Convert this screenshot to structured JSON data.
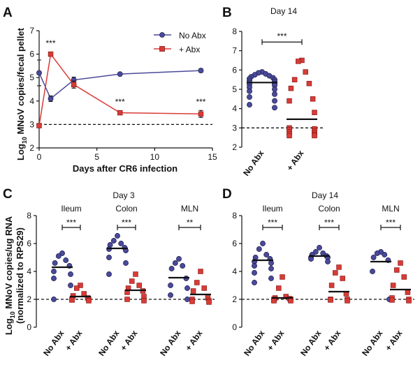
{
  "colors": {
    "no_abx": "#4a4a9a",
    "abx": "#d93b36",
    "axis": "#111111"
  },
  "chart_data": [
    {
      "panel": "A",
      "type": "line",
      "ylabel_main": "Log",
      "ylabel_sub": "10",
      "ylabel_rest": " MNoV copies/fecal pellet",
      "xlabel": "Days after CR6 infection",
      "xlim": [
        0,
        15
      ],
      "ylim": [
        2,
        7
      ],
      "xticks": [
        "0",
        "5",
        "10",
        "15"
      ],
      "yticks": [
        "2",
        "3",
        "4",
        "5",
        "6",
        "7"
      ],
      "detection_limit": 3,
      "legend_position": "top-right",
      "series": [
        {
          "name": "No Abx",
          "x": [
            0,
            1,
            3,
            7,
            14
          ],
          "y": [
            5.2,
            4.1,
            4.9,
            5.15,
            5.3
          ],
          "err": [
            0.55,
            0.12,
            0.12,
            0.05,
            0.08
          ]
        },
        {
          "name": "+ Abx",
          "x": [
            0,
            1,
            3,
            7,
            14
          ],
          "y": [
            2.95,
            6.0,
            4.7,
            3.5,
            3.45
          ],
          "err": [
            0.0,
            0.05,
            0.15,
            0.08,
            0.15
          ]
        }
      ],
      "annotations": [
        {
          "x": 1,
          "y": 6.35,
          "text": "***"
        },
        {
          "x": 7,
          "y": 3.85,
          "text": "***"
        },
        {
          "x": 14,
          "y": 3.85,
          "text": "***"
        }
      ]
    },
    {
      "panel": "B",
      "type": "scatter",
      "title": "Day 14",
      "ylim": [
        2,
        8
      ],
      "yticks": [
        "2",
        "3",
        "4",
        "5",
        "6",
        "7",
        "8"
      ],
      "detection_limit": 3,
      "categories": [
        "No Abx",
        "+ Abx"
      ],
      "groups": [
        {
          "name": "No Abx",
          "mean": 5.35,
          "values": [
            5.9,
            5.85,
            5.8,
            5.75,
            5.7,
            5.65,
            5.6,
            5.55,
            5.5,
            5.45,
            5.4,
            5.35,
            5.3,
            5.25,
            5.2,
            5.1,
            5.0,
            4.9,
            4.75,
            4.6,
            4.4,
            4.2,
            4.05
          ]
        },
        {
          "name": "+ Abx",
          "mean": 3.45,
          "values": [
            6.5,
            6.45,
            5.9,
            5.5,
            5.3,
            5.05,
            4.5,
            4.4,
            3.8,
            3.0,
            2.95,
            2.9,
            2.85,
            2.8,
            2.75,
            2.7,
            2.65,
            2.6,
            2.6
          ]
        }
      ],
      "significance": [
        {
          "from": 0,
          "to": 1,
          "y": 7.45,
          "text": "***"
        }
      ]
    },
    {
      "panel": "C",
      "type": "scatter",
      "title": "Day 3",
      "ylabel_main": "Log",
      "ylabel_sub": "10",
      "ylabel_rest": " MNoV copies/ug RNA",
      "ylabel_line2": "(normalized to RPS29)",
      "ylim": [
        0,
        8
      ],
      "yticks": [
        "0",
        "2",
        "4",
        "6",
        "8"
      ],
      "detection_limit": 2,
      "tissues": [
        {
          "name": "Ileum",
          "sig": "***",
          "groups": [
            {
              "name": "No Abx",
              "mean": 4.3,
              "values": [
                5.3,
                5.1,
                4.8,
                4.6,
                4.4,
                4.0,
                3.8,
                3.5,
                3.0,
                2.0
              ]
            },
            {
              "name": "+ Abx",
              "mean": 2.2,
              "values": [
                3.0,
                2.8,
                2.4,
                2.25,
                2.1,
                2.0,
                2.0,
                1.95,
                1.9
              ]
            }
          ]
        },
        {
          "name": "Colon",
          "sig": "***",
          "groups": [
            {
              "name": "No Abx",
              "mean": 5.65,
              "values": [
                6.55,
                6.2,
                6.0,
                5.9,
                5.7,
                5.6,
                5.5,
                5.0,
                4.6,
                3.8
              ]
            },
            {
              "name": "+ Abx",
              "mean": 2.65,
              "values": [
                3.8,
                3.3,
                3.0,
                2.8,
                2.6,
                2.5,
                2.2,
                2.0,
                1.9
              ]
            }
          ]
        },
        {
          "name": "MLN",
          "sig": "**",
          "groups": [
            {
              "name": "No Abx",
              "mean": 3.55,
              "values": [
                4.9,
                4.6,
                4.4,
                4.2,
                3.5,
                3.0,
                2.8,
                2.3,
                2.0
              ]
            },
            {
              "name": "+ Abx",
              "mean": 2.35,
              "values": [
                4.0,
                3.2,
                2.8,
                2.6,
                2.1,
                2.0,
                1.9,
                1.85,
                1.8
              ]
            }
          ]
        }
      ],
      "group_labels": [
        "No Abx",
        "+ Abx"
      ]
    },
    {
      "panel": "D",
      "type": "scatter",
      "title": "Day 14",
      "ylim": [
        0,
        8
      ],
      "yticks": [
        "0",
        "2",
        "4",
        "6",
        "8"
      ],
      "detection_limit": 2,
      "tissues": [
        {
          "name": "Ileum",
          "sig": "***",
          "groups": [
            {
              "name": "No Abx",
              "mean": 4.8,
              "values": [
                6.0,
                5.6,
                5.2,
                5.0,
                4.9,
                4.7,
                4.6,
                4.4,
                4.2,
                3.9,
                3.5,
                3.2
              ]
            },
            {
              "name": "+ Abx",
              "mean": 2.1,
              "values": [
                3.6,
                2.8,
                2.2,
                2.1,
                2.05,
                2.0,
                2.0,
                1.95,
                1.9,
                1.9
              ]
            }
          ]
        },
        {
          "name": "Colon",
          "sig": "***",
          "groups": [
            {
              "name": "No Abx",
              "mean": 5.1,
              "values": [
                5.7,
                5.4,
                5.3,
                5.2,
                5.1,
                5.0,
                5.0,
                4.9,
                4.7
              ]
            },
            {
              "name": "+ Abx",
              "mean": 2.55,
              "values": [
                4.3,
                3.9,
                3.5,
                3.0,
                2.4,
                2.0,
                2.0,
                1.95,
                1.9
              ]
            }
          ]
        },
        {
          "name": "MLN",
          "sig": "***",
          "groups": [
            {
              "name": "No Abx",
              "mean": 4.7,
              "values": [
                5.4,
                5.3,
                5.2,
                5.0,
                4.8,
                4.0,
                2.0
              ]
            },
            {
              "name": "+ Abx",
              "mean": 2.7,
              "values": [
                4.6,
                4.1,
                3.6,
                3.0,
                2.5,
                2.1,
                2.0,
                1.95,
                1.9
              ]
            }
          ]
        }
      ],
      "group_labels": [
        "No Abx",
        "+ Abx"
      ]
    }
  ],
  "panel_letters": [
    "A",
    "B",
    "C",
    "D"
  ]
}
